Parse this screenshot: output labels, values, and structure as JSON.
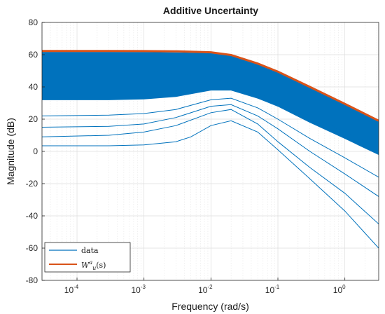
{
  "chart_data": {
    "type": "line",
    "title": "Additive Uncertainty",
    "xlabel": "Frequency  (rad/s)",
    "ylabel": "Magnitude (dB)",
    "x_scale": "log",
    "xlim": [
      3e-05,
      3.2
    ],
    "ylim": [
      -80,
      80
    ],
    "x_ticks": [
      {
        "value": 0.0001,
        "base": "10",
        "exp": "-4"
      },
      {
        "value": 0.001,
        "base": "10",
        "exp": "-3"
      },
      {
        "value": 0.01,
        "base": "10",
        "exp": "-2"
      },
      {
        "value": 0.1,
        "base": "10",
        "exp": "-1"
      },
      {
        "value": 1,
        "base": "10",
        "exp": "0"
      }
    ],
    "y_ticks": [
      -80,
      -60,
      -40,
      -20,
      0,
      20,
      40,
      60,
      80
    ],
    "grid": true,
    "legend_position": "bottom-left",
    "colors": {
      "data": "#0072bd",
      "bound": "#d95319"
    },
    "series": [
      {
        "name": "data",
        "description": "family of response curves",
        "representative_curves": [
          {
            "x": [
              3e-05,
              0.0003,
              0.001,
              0.003,
              0.01,
              0.02,
              0.05,
              0.1,
              0.3,
              1,
              3.2
            ],
            "y": [
              61.5,
              61.5,
              61.4,
              61.2,
              60.8,
              59,
              54,
              49,
              39.5,
              29,
              18.5
            ]
          },
          {
            "x": [
              3e-05,
              0.0003,
              0.001,
              0.003,
              0.01,
              0.02,
              0.05,
              0.1,
              0.3,
              1,
              3.2
            ],
            "y": [
              50,
              50,
              49.5,
              48.5,
              46,
              42,
              36,
              31,
              22,
              12,
              2
            ]
          },
          {
            "x": [
              3e-05,
              0.0003,
              0.001,
              0.003,
              0.01,
              0.02,
              0.05,
              0.1,
              0.3,
              1,
              3.2
            ],
            "y": [
              32,
              32,
              32.5,
              34,
              38,
              38,
              33,
              28,
              18,
              8,
              -2
            ]
          },
          {
            "x": [
              3e-05,
              0.0003,
              0.001,
              0.003,
              0.01,
              0.02,
              0.05,
              0.1,
              0.3,
              1,
              3.2
            ],
            "y": [
              22,
              22.5,
              23.5,
              26,
              32,
              33,
              27,
              20,
              8,
              -4,
              -16
            ]
          },
          {
            "x": [
              3e-05,
              0.0003,
              0.001,
              0.003,
              0.01,
              0.02,
              0.05,
              0.1,
              0.3,
              1,
              3.2
            ],
            "y": [
              15,
              15.5,
              17,
              21,
              28,
              29,
              22,
              14,
              0,
              -14,
              -28
            ]
          },
          {
            "x": [
              3e-05,
              0.0003,
              0.001,
              0.003,
              0.01,
              0.02,
              0.05,
              0.1,
              0.3,
              1,
              3.2
            ],
            "y": [
              9,
              10,
              12,
              16,
              24,
              26,
              17,
              6,
              -10,
              -26,
              -45
            ]
          },
          {
            "x": [
              3e-05,
              0.0003,
              0.001,
              0.003,
              0.005,
              0.01,
              0.02,
              0.05,
              0.1,
              0.3,
              1,
              3.2
            ],
            "y": [
              3.5,
              3.5,
              4,
              6,
              9,
              16,
              19,
              12,
              1,
              -17,
              -37,
              -60
            ]
          }
        ]
      },
      {
        "name": "W^a_u(s)",
        "x": [
          3e-05,
          0.0003,
          0.001,
          0.003,
          0.01,
          0.02,
          0.05,
          0.1,
          0.3,
          1,
          3.2
        ],
        "y": [
          62.3,
          62.3,
          62.2,
          62.1,
          61.5,
          59.8,
          54.5,
          49.5,
          40,
          29.5,
          19
        ]
      }
    ],
    "legend": [
      {
        "key": "data",
        "label": "data"
      },
      {
        "key": "bound",
        "base": "W",
        "sup": "a",
        "sub": "u",
        "tail": "(s)"
      }
    ]
  }
}
